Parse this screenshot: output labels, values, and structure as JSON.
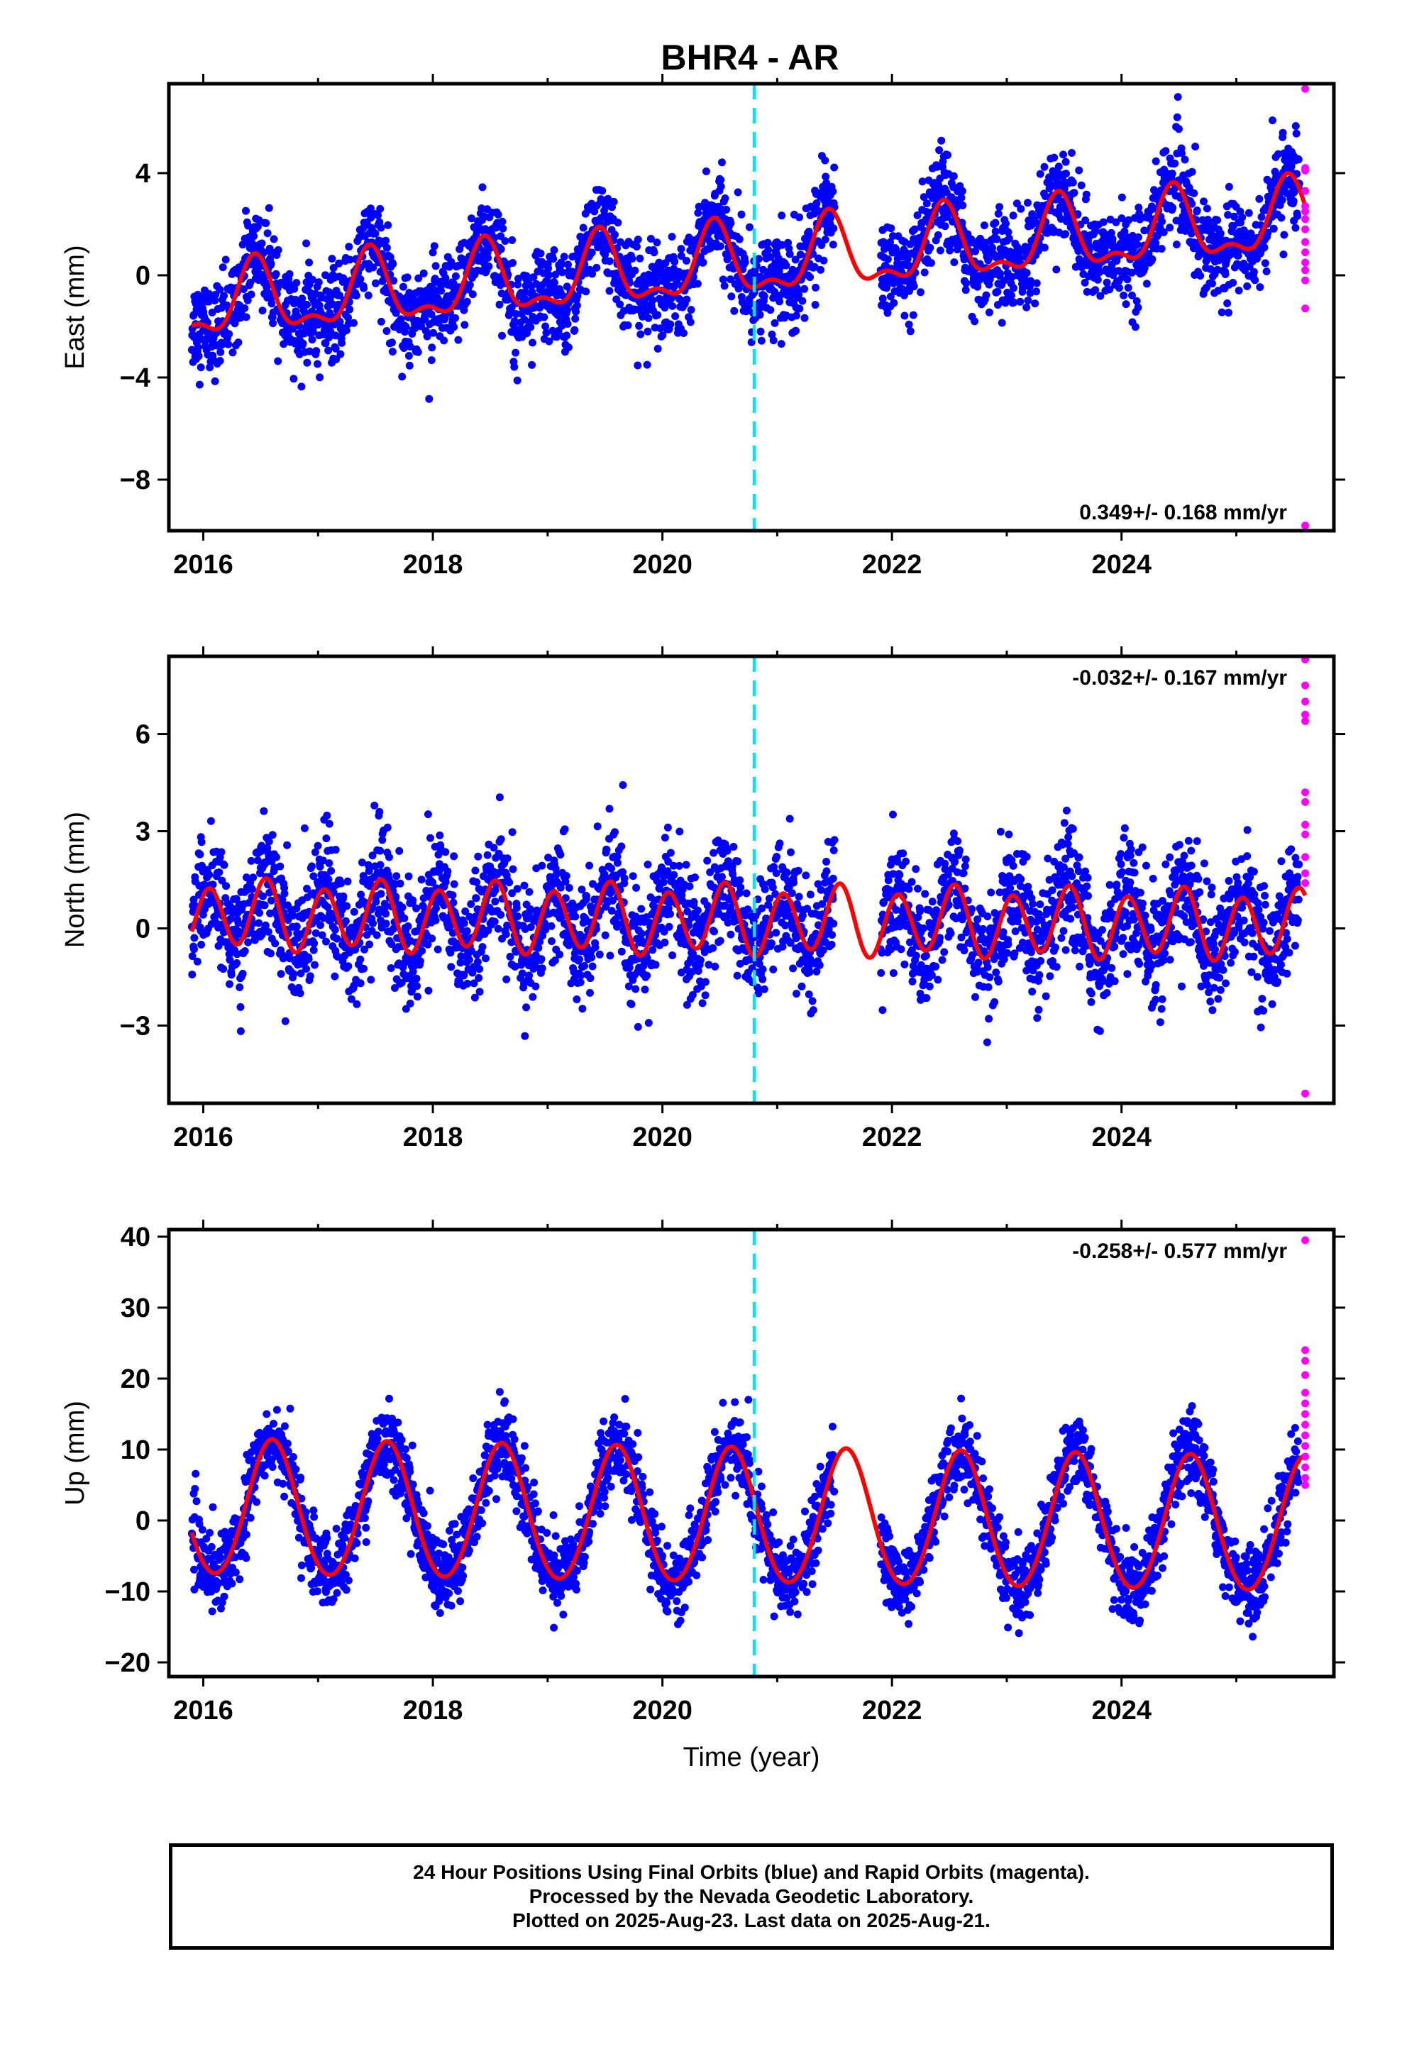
{
  "title": "BHR4 - AR",
  "colors": {
    "final_orbits": "#0000ff",
    "rapid_orbits": "#ff00ff",
    "model": "#ff0000",
    "event_marker": "#00e5ff",
    "frame": "#000000"
  },
  "footer": {
    "line1": "24 Hour Positions Using Final Orbits (blue) and Rapid Orbits (magenta).",
    "line2": "Processed by the Nevada Geodetic Laboratory.",
    "line3": "Plotted on 2025-Aug-23. Last data on 2025-Aug-21."
  },
  "chart_data": [
    {
      "type": "scatter",
      "panel": "east",
      "ylabel": "East (mm)",
      "xlabel": "",
      "xlim": [
        2015.7,
        2025.85
      ],
      "ylim": [
        -10,
        7.5
      ],
      "xticks": [
        2016,
        2018,
        2020,
        2022,
        2024
      ],
      "yticks": [
        -8,
        -4,
        0,
        4
      ],
      "rate_label": "0.349+/- 0.168 mm/yr",
      "rate_position": "bottom-right",
      "event_line_x": 2020.8,
      "data_start": 2015.9,
      "data_end": 2025.55,
      "gaps": [
        [
          2021.5,
          2021.9
        ]
      ],
      "model": {
        "offset": -1.2,
        "trend": 0.349,
        "ref_year": 2016,
        "annual_amp": 1.3,
        "annual_peak": 0.45,
        "semi_amp": 0.6,
        "semi_peak": 0.45
      },
      "scatter_sd": 0.9,
      "rapid_x": 2025.6,
      "rapid_values": [
        7.3,
        4.2,
        4.1,
        3.3,
        2.7,
        2.5,
        2.2,
        1.8,
        1.3,
        0.9,
        0.5,
        0.2,
        -0.2,
        -1.3,
        -9.8
      ]
    },
    {
      "type": "scatter",
      "panel": "north",
      "ylabel": "North (mm)",
      "xlabel": "",
      "xlim": [
        2015.7,
        2025.85
      ],
      "ylim": [
        -5.4,
        8.4
      ],
      "xticks": [
        2016,
        2018,
        2020,
        2022,
        2024
      ],
      "yticks": [
        -3,
        0,
        3,
        6
      ],
      "rate_label": "-0.032+/- 0.167 mm/yr",
      "rate_position": "top-right",
      "event_line_x": 2020.8,
      "data_start": 2015.9,
      "data_end": 2025.55,
      "gaps": [
        [
          2021.5,
          2021.9
        ]
      ],
      "model": {
        "offset": 0.4,
        "trend": -0.032,
        "ref_year": 2016,
        "annual_amp": 0.2,
        "annual_peak": 0.45,
        "semi_amp": 1.0,
        "semi_peak": 0.05
      },
      "scatter_sd": 0.9,
      "rapid_x": 2025.6,
      "rapid_values": [
        8.3,
        7.5,
        7.0,
        6.6,
        6.4,
        4.2,
        3.9,
        3.2,
        2.9,
        2.2,
        1.7,
        1.4,
        -5.1
      ]
    },
    {
      "type": "scatter",
      "panel": "up",
      "ylabel": "Up (mm)",
      "xlabel": "Time (year)",
      "xlim": [
        2015.7,
        2025.85
      ],
      "ylim": [
        -22,
        41
      ],
      "xticks": [
        2016,
        2018,
        2020,
        2022,
        2024
      ],
      "yticks": [
        -20,
        -10,
        0,
        10,
        20,
        30,
        40
      ],
      "rate_label": "-0.258+/- 0.577 mm/yr",
      "rate_position": "top-right",
      "event_line_x": 2020.8,
      "data_start": 2015.9,
      "data_end": 2025.55,
      "gaps": [
        [
          2021.5,
          2021.9
        ]
      ],
      "model": {
        "offset": 1.6,
        "trend": -0.258,
        "ref_year": 2016,
        "annual_amp": 9.5,
        "annual_peak": 0.6,
        "semi_amp": 0.5,
        "semi_peak": 0.1
      },
      "scatter_sd": 2.6,
      "rapid_x": 2025.6,
      "rapid_values": [
        39.5,
        24.0,
        22.5,
        20.5,
        18.0,
        16.5,
        15.0,
        13.5,
        12.0,
        10.5,
        9.0,
        7.5,
        6.0,
        5.0
      ]
    }
  ]
}
